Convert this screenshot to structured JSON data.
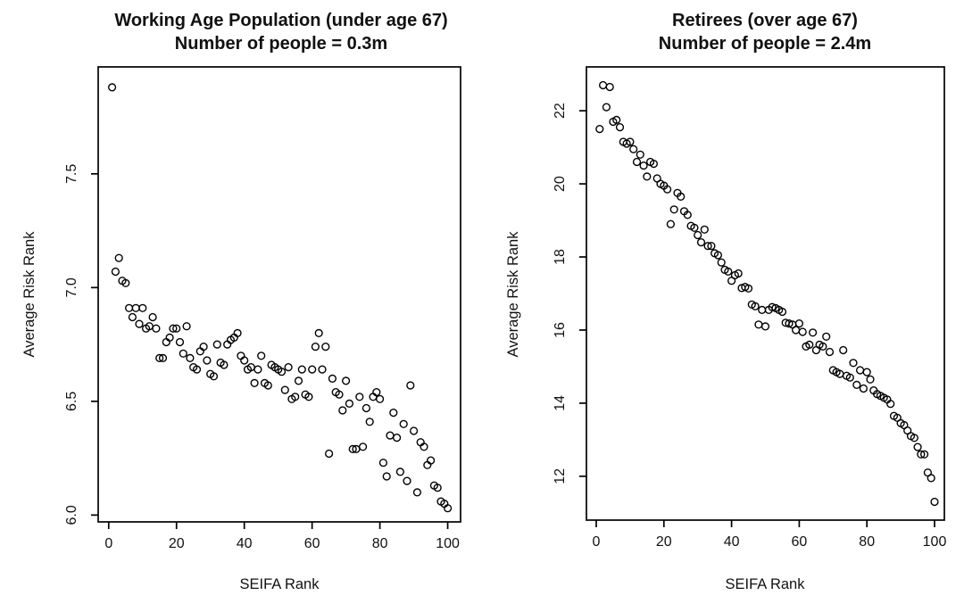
{
  "figure": {
    "background_color": "#ffffff",
    "axis_color": "#000000",
    "marker_color": "#000000",
    "marker_style": "open-circle"
  },
  "chart_data": [
    {
      "type": "scatter",
      "title_line1": "Working Age Population (under age 67)",
      "title_line2": "Number of people = 0.3m",
      "xlabel": "SEIFA Rank",
      "ylabel": "Average Risk Rank",
      "x_ticks": [
        0,
        20,
        40,
        60,
        80,
        100
      ],
      "x_tick_labels": [
        "0",
        "20",
        "40",
        "60",
        "80",
        "100"
      ],
      "y_ticks": [
        6.0,
        6.5,
        7.0,
        7.5
      ],
      "y_tick_labels": [
        "6.0",
        "6.5",
        "7.0",
        "7.5"
      ],
      "xlim": [
        -3.1,
        103.8
      ],
      "ylim": [
        5.97,
        7.97
      ],
      "grid": false,
      "legend": null,
      "points": [
        [
          1,
          7.88
        ],
        [
          2,
          7.07
        ],
        [
          3,
          7.13
        ],
        [
          4,
          7.03
        ],
        [
          5,
          7.02
        ],
        [
          6,
          6.91
        ],
        [
          7,
          6.87
        ],
        [
          8,
          6.91
        ],
        [
          9,
          6.84
        ],
        [
          10,
          6.91
        ],
        [
          11,
          6.82
        ],
        [
          12,
          6.83
        ],
        [
          13,
          6.87
        ],
        [
          14,
          6.82
        ],
        [
          15,
          6.69
        ],
        [
          16,
          6.69
        ],
        [
          17,
          6.76
        ],
        [
          18,
          6.78
        ],
        [
          19,
          6.82
        ],
        [
          20,
          6.82
        ],
        [
          21,
          6.76
        ],
        [
          22,
          6.71
        ],
        [
          23,
          6.83
        ],
        [
          24,
          6.69
        ],
        [
          25,
          6.65
        ],
        [
          26,
          6.64
        ],
        [
          27,
          6.72
        ],
        [
          28,
          6.74
        ],
        [
          29,
          6.68
        ],
        [
          30,
          6.62
        ],
        [
          31,
          6.61
        ],
        [
          32,
          6.75
        ],
        [
          33,
          6.67
        ],
        [
          34,
          6.66
        ],
        [
          35,
          6.75
        ],
        [
          36,
          6.77
        ],
        [
          37,
          6.78
        ],
        [
          38,
          6.8
        ],
        [
          39,
          6.7
        ],
        [
          40,
          6.68
        ],
        [
          41,
          6.64
        ],
        [
          42,
          6.65
        ],
        [
          43,
          6.58
        ],
        [
          44,
          6.64
        ],
        [
          45,
          6.7
        ],
        [
          46,
          6.58
        ],
        [
          47,
          6.57
        ],
        [
          48,
          6.66
        ],
        [
          49,
          6.65
        ],
        [
          50,
          6.64
        ],
        [
          51,
          6.63
        ],
        [
          52,
          6.55
        ],
        [
          53,
          6.65
        ],
        [
          54,
          6.51
        ],
        [
          55,
          6.52
        ],
        [
          56,
          6.59
        ],
        [
          57,
          6.64
        ],
        [
          58,
          6.53
        ],
        [
          59,
          6.52
        ],
        [
          60,
          6.64
        ],
        [
          61,
          6.74
        ],
        [
          62,
          6.8
        ],
        [
          63,
          6.64
        ],
        [
          64,
          6.74
        ],
        [
          65,
          6.27
        ],
        [
          66,
          6.6
        ],
        [
          67,
          6.54
        ],
        [
          68,
          6.53
        ],
        [
          69,
          6.46
        ],
        [
          70,
          6.59
        ],
        [
          71,
          6.49
        ],
        [
          72,
          6.29
        ],
        [
          73,
          6.29
        ],
        [
          74,
          6.52
        ],
        [
          75,
          6.3
        ],
        [
          76,
          6.47
        ],
        [
          77,
          6.41
        ],
        [
          78,
          6.52
        ],
        [
          79,
          6.54
        ],
        [
          80,
          6.51
        ],
        [
          81,
          6.23
        ],
        [
          82,
          6.17
        ],
        [
          83,
          6.35
        ],
        [
          84,
          6.45
        ],
        [
          85,
          6.34
        ],
        [
          86,
          6.19
        ],
        [
          87,
          6.4
        ],
        [
          88,
          6.15
        ],
        [
          89,
          6.57
        ],
        [
          90,
          6.37
        ],
        [
          91,
          6.1
        ],
        [
          92,
          6.32
        ],
        [
          93,
          6.3
        ],
        [
          94,
          6.22
        ],
        [
          95,
          6.24
        ],
        [
          96,
          6.13
        ],
        [
          97,
          6.12
        ],
        [
          98,
          6.06
        ],
        [
          99,
          6.05
        ],
        [
          100,
          6.03
        ]
      ]
    },
    {
      "type": "scatter",
      "title_line1": "Retirees (over age 67)",
      "title_line2": "Number of people = 2.4m",
      "xlabel": "SEIFA Rank",
      "ylabel": "Average Risk Rank",
      "x_ticks": [
        0,
        20,
        40,
        60,
        80,
        100
      ],
      "x_tick_labels": [
        "0",
        "20",
        "40",
        "60",
        "80",
        "100"
      ],
      "y_ticks": [
        12,
        14,
        16,
        18,
        20,
        22
      ],
      "y_tick_labels": [
        "12",
        "14",
        "16",
        "18",
        "20",
        "22"
      ],
      "xlim": [
        -2.9,
        102.9
      ],
      "ylim": [
        10.8,
        23.2
      ],
      "grid": false,
      "legend": null,
      "points": [
        [
          1,
          21.5
        ],
        [
          2,
          22.7
        ],
        [
          3,
          22.1
        ],
        [
          4,
          22.65
        ],
        [
          5,
          21.7
        ],
        [
          6,
          21.75
        ],
        [
          7,
          21.55
        ],
        [
          8,
          21.15
        ],
        [
          9,
          21.1
        ],
        [
          10,
          21.15
        ],
        [
          11,
          20.95
        ],
        [
          12,
          20.6
        ],
        [
          13,
          20.8
        ],
        [
          14,
          20.5
        ],
        [
          15,
          20.2
        ],
        [
          16,
          20.6
        ],
        [
          17,
          20.55
        ],
        [
          18,
          20.15
        ],
        [
          19,
          20.0
        ],
        [
          20,
          19.95
        ],
        [
          21,
          19.85
        ],
        [
          22,
          18.9
        ],
        [
          23,
          19.3
        ],
        [
          24,
          19.75
        ],
        [
          25,
          19.65
        ],
        [
          26,
          19.25
        ],
        [
          27,
          19.15
        ],
        [
          28,
          18.85
        ],
        [
          29,
          18.8
        ],
        [
          30,
          18.6
        ],
        [
          31,
          18.4
        ],
        [
          32,
          18.75
        ],
        [
          33,
          18.3
        ],
        [
          34,
          18.3
        ],
        [
          35,
          18.1
        ],
        [
          36,
          18.05
        ],
        [
          37,
          17.85
        ],
        [
          38,
          17.65
        ],
        [
          39,
          17.6
        ],
        [
          40,
          17.35
        ],
        [
          41,
          17.5
        ],
        [
          42,
          17.55
        ],
        [
          43,
          17.15
        ],
        [
          44,
          17.18
        ],
        [
          45,
          17.14
        ],
        [
          46,
          16.7
        ],
        [
          47,
          16.65
        ],
        [
          48,
          16.15
        ],
        [
          49,
          16.55
        ],
        [
          50,
          16.1
        ],
        [
          51,
          16.55
        ],
        [
          52,
          16.63
        ],
        [
          53,
          16.6
        ],
        [
          54,
          16.55
        ],
        [
          55,
          16.5
        ],
        [
          56,
          16.2
        ],
        [
          57,
          16.18
        ],
        [
          58,
          16.15
        ],
        [
          59,
          16.0
        ],
        [
          60,
          16.18
        ],
        [
          61,
          15.95
        ],
        [
          62,
          15.55
        ],
        [
          63,
          15.6
        ],
        [
          64,
          15.93
        ],
        [
          65,
          15.45
        ],
        [
          66,
          15.6
        ],
        [
          67,
          15.55
        ],
        [
          68,
          15.82
        ],
        [
          69,
          15.4
        ],
        [
          70,
          14.9
        ],
        [
          71,
          14.85
        ],
        [
          72,
          14.8
        ],
        [
          73,
          15.45
        ],
        [
          74,
          14.75
        ],
        [
          75,
          14.7
        ],
        [
          76,
          15.1
        ],
        [
          77,
          14.5
        ],
        [
          78,
          14.9
        ],
        [
          79,
          14.4
        ],
        [
          80,
          14.85
        ],
        [
          81,
          14.65
        ],
        [
          82,
          14.35
        ],
        [
          83,
          14.25
        ],
        [
          84,
          14.2
        ],
        [
          85,
          14.15
        ],
        [
          86,
          14.1
        ],
        [
          87,
          13.98
        ],
        [
          88,
          13.65
        ],
        [
          89,
          13.6
        ],
        [
          90,
          13.45
        ],
        [
          91,
          13.4
        ],
        [
          92,
          13.25
        ],
        [
          93,
          13.1
        ],
        [
          94,
          13.05
        ],
        [
          95,
          12.8
        ],
        [
          96,
          12.6
        ],
        [
          97,
          12.6
        ],
        [
          98,
          12.1
        ],
        [
          99,
          11.95
        ],
        [
          100,
          11.3
        ]
      ]
    }
  ]
}
